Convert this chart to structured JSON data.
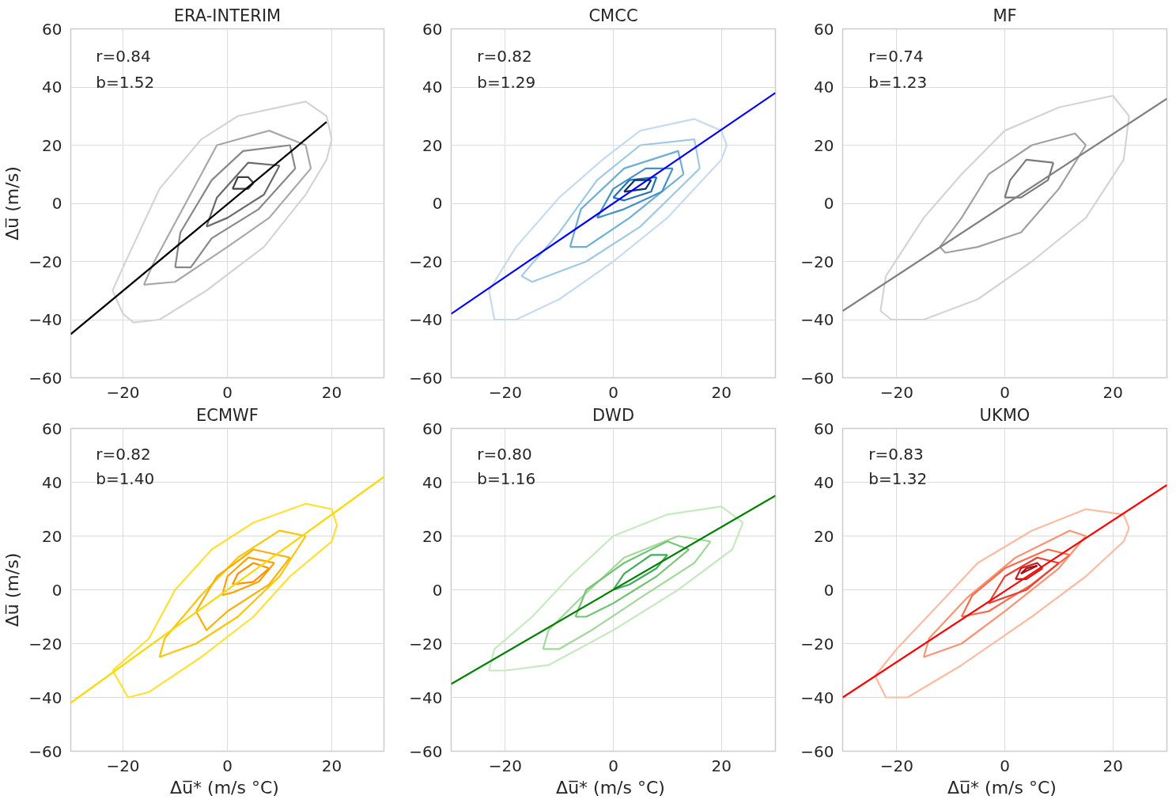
{
  "chart_data": [
    {
      "type": "line",
      "title": "ERA-INTERIM",
      "ylabel": "Δu̅ (m/s)",
      "annotations": [
        "r=0.84",
        "b=1.52"
      ],
      "xlim": [
        -30,
        30
      ],
      "ylim": [
        -60,
        60
      ],
      "xticks": [
        -20,
        0,
        20
      ],
      "yticks": [
        -60,
        -40,
        -20,
        0,
        20,
        40,
        60
      ],
      "grid": true,
      "series": [
        {
          "color": "#d4d4d4",
          "x": [
            -22,
            -20,
            -13,
            -5,
            2,
            15,
            19,
            20
          ],
          "values": [
            -30,
            -22,
            5,
            22,
            30,
            35,
            30,
            22
          ]
        },
        {
          "color": "#d4d4d4",
          "x": [
            -22,
            -20,
            -18,
            -13,
            -4,
            7,
            15,
            19,
            20
          ],
          "values": [
            -30,
            -38,
            -41,
            -40,
            -30,
            -15,
            3,
            15,
            22
          ]
        },
        {
          "color": "#a8a8a8",
          "x": [
            -16,
            -14,
            -8,
            -2,
            8,
            15,
            16
          ],
          "values": [
            -28,
            -20,
            0,
            20,
            25,
            20,
            12
          ]
        },
        {
          "color": "#a8a8a8",
          "x": [
            -16,
            -10,
            0,
            8,
            16
          ],
          "values": [
            -28,
            -27,
            -15,
            -5,
            12
          ]
        },
        {
          "color": "#888888",
          "x": [
            -10,
            -9,
            -3,
            3,
            12,
            13
          ],
          "values": [
            -22,
            -10,
            8,
            18,
            20,
            12
          ]
        },
        {
          "color": "#888888",
          "x": [
            -10,
            -7,
            -3,
            6,
            13
          ],
          "values": [
            -22,
            -22,
            -12,
            -2,
            12
          ]
        },
        {
          "color": "#6a6a6a",
          "x": [
            -4,
            -2,
            4,
            10
          ],
          "values": [
            -8,
            2,
            14,
            13
          ]
        },
        {
          "color": "#6a6a6a",
          "x": [
            -4,
            0,
            7,
            10
          ],
          "values": [
            -8,
            -5,
            3,
            13
          ]
        },
        {
          "color": "#404040",
          "x": [
            1,
            2,
            4,
            5
          ],
          "values": [
            5,
            9,
            9,
            7
          ]
        },
        {
          "color": "#404040",
          "x": [
            1,
            4,
            5
          ],
          "values": [
            5,
            5,
            7
          ]
        },
        {
          "color": "#000000",
          "x": [
            -30,
            19
          ],
          "values": [
            -45,
            28
          ]
        }
      ]
    },
    {
      "type": "line",
      "title": "CMCC",
      "annotations": [
        "r=0.82",
        "b=1.29"
      ],
      "xlim": [
        -30,
        30
      ],
      "ylim": [
        -60,
        60
      ],
      "xticks": [
        -20,
        0,
        20
      ],
      "yticks": [
        -60,
        -40,
        -20,
        0,
        20,
        40,
        60
      ],
      "grid": true,
      "series": [
        {
          "color": "#c6dbef",
          "x": [
            -23,
            -18,
            -10,
            -2,
            5,
            15,
            20,
            21
          ],
          "values": [
            -30,
            -15,
            2,
            15,
            25,
            29,
            25,
            20
          ]
        },
        {
          "color": "#c6dbef",
          "x": [
            -23,
            -22,
            -18,
            -10,
            0,
            10,
            20,
            21
          ],
          "values": [
            -30,
            -40,
            -40,
            -33,
            -20,
            -5,
            15,
            20
          ]
        },
        {
          "color": "#9ecae1",
          "x": [
            -17,
            -10,
            -3,
            5,
            15,
            16
          ],
          "values": [
            -25,
            -10,
            8,
            20,
            22,
            12
          ]
        },
        {
          "color": "#9ecae1",
          "x": [
            -17,
            -15,
            -5,
            5,
            16
          ],
          "values": [
            -25,
            -27,
            -20,
            -8,
            12
          ]
        },
        {
          "color": "#6baed6",
          "x": [
            -8,
            -6,
            2,
            12,
            13
          ],
          "values": [
            -15,
            -2,
            12,
            18,
            10
          ]
        },
        {
          "color": "#6baed6",
          "x": [
            -8,
            -5,
            3,
            13
          ],
          "values": [
            -15,
            -15,
            -5,
            10
          ]
        },
        {
          "color": "#4292c6",
          "x": [
            -3,
            0,
            6,
            11
          ],
          "values": [
            -5,
            5,
            12,
            12
          ]
        },
        {
          "color": "#4292c6",
          "x": [
            -3,
            2,
            9,
            11
          ],
          "values": [
            -5,
            -2,
            4,
            12
          ]
        },
        {
          "color": "#2171b5",
          "x": [
            0,
            3,
            8
          ],
          "values": [
            2,
            8,
            9
          ]
        },
        {
          "color": "#2171b5",
          "x": [
            0,
            2,
            7,
            8
          ],
          "values": [
            2,
            1,
            4,
            9
          ]
        },
        {
          "color": "#08306b",
          "x": [
            2,
            4,
            7
          ],
          "values": [
            4,
            8,
            8
          ]
        },
        {
          "color": "#08306b",
          "x": [
            2,
            6,
            7
          ],
          "values": [
            4,
            5,
            8
          ]
        },
        {
          "color": "#0000ff",
          "x": [
            -30,
            30
          ],
          "values": [
            -38,
            38
          ]
        }
      ]
    },
    {
      "type": "line",
      "title": "MF",
      "annotations": [
        "r=0.74",
        "b=1.23"
      ],
      "xlim": [
        -30,
        30
      ],
      "ylim": [
        -60,
        60
      ],
      "xticks": [
        -20,
        0,
        20
      ],
      "yticks": [
        -60,
        -40,
        -20,
        0,
        20,
        40,
        60
      ],
      "grid": true,
      "series": [
        {
          "color": "#d4d4d4",
          "x": [
            -23,
            -22,
            -15,
            -8,
            0,
            10,
            20,
            23
          ],
          "values": [
            -37,
            -25,
            -5,
            10,
            25,
            33,
            37,
            30
          ]
        },
        {
          "color": "#d4d4d4",
          "x": [
            -23,
            -21,
            -15,
            -5,
            5,
            15,
            22,
            23
          ],
          "values": [
            -37,
            -40,
            -40,
            -33,
            -20,
            -5,
            15,
            30
          ]
        },
        {
          "color": "#a0a0a0",
          "x": [
            -12,
            -8,
            -3,
            5,
            13,
            15
          ],
          "values": [
            -15,
            -5,
            10,
            20,
            24,
            20
          ]
        },
        {
          "color": "#a0a0a0",
          "x": [
            -12,
            -11,
            -5,
            3,
            10,
            15
          ],
          "values": [
            -15,
            -17,
            -15,
            -10,
            5,
            20
          ]
        },
        {
          "color": "#7a7a7a",
          "x": [
            0,
            1,
            4,
            9
          ],
          "values": [
            2,
            8,
            15,
            14
          ]
        },
        {
          "color": "#7a7a7a",
          "x": [
            0,
            3,
            8,
            9
          ],
          "values": [
            2,
            2,
            8,
            14
          ]
        },
        {
          "color": "#808080",
          "x": [
            -30,
            30
          ],
          "values": [
            -37,
            36
          ]
        }
      ]
    },
    {
      "type": "line",
      "title": "ECMWF",
      "ylabel": "Δu̅ (m/s)",
      "xlabel": "Δu̅* (m/s  °C)",
      "annotations": [
        "r=0.82",
        "b=1.40"
      ],
      "xlim": [
        -30,
        30
      ],
      "ylim": [
        -60,
        60
      ],
      "xticks": [
        -20,
        0,
        20
      ],
      "yticks": [
        -60,
        -40,
        -20,
        0,
        20,
        40,
        60
      ],
      "grid": true,
      "series": [
        {
          "color": "#ffe033",
          "x": [
            -22,
            -15,
            -10,
            -3,
            5,
            15,
            20,
            21
          ],
          "values": [
            -30,
            -18,
            0,
            15,
            25,
            32,
            30,
            24
          ]
        },
        {
          "color": "#ffe033",
          "x": [
            -22,
            -19,
            -15,
            -5,
            5,
            12,
            20,
            21
          ],
          "values": [
            -30,
            -40,
            -38,
            -25,
            -10,
            5,
            18,
            24
          ]
        },
        {
          "color": "#ffc400",
          "x": [
            -13,
            -12,
            -5,
            2,
            10,
            15
          ],
          "values": [
            -25,
            -18,
            -2,
            12,
            22,
            20
          ]
        },
        {
          "color": "#ffc400",
          "x": [
            -13,
            -6,
            2,
            10,
            15
          ],
          "values": [
            -25,
            -20,
            -10,
            5,
            20
          ]
        },
        {
          "color": "#ffae00",
          "x": [
            -6,
            -2,
            5,
            12
          ],
          "values": [
            -8,
            5,
            15,
            12
          ]
        },
        {
          "color": "#ffae00",
          "x": [
            -6,
            -4,
            0,
            8,
            12
          ],
          "values": [
            -8,
            -15,
            -8,
            2,
            12
          ]
        },
        {
          "color": "#ffa000",
          "x": [
            -1,
            0,
            4,
            9
          ],
          "values": [
            -2,
            5,
            12,
            10
          ]
        },
        {
          "color": "#ffa000",
          "x": [
            -1,
            1,
            6,
            9
          ],
          "values": [
            -2,
            -1,
            3,
            10
          ]
        },
        {
          "color": "#ff9000",
          "x": [
            1,
            2,
            5,
            8
          ],
          "values": [
            2,
            6,
            10,
            8
          ]
        },
        {
          "color": "#ff9000",
          "x": [
            1,
            5,
            8
          ],
          "values": [
            2,
            3,
            8
          ]
        },
        {
          "color": "#ffd700",
          "x": [
            -30,
            30
          ],
          "values": [
            -42,
            42
          ]
        }
      ]
    },
    {
      "type": "line",
      "title": "DWD",
      "xlabel": "Δu̅* (m/s  °C)",
      "annotations": [
        "r=0.80",
        "b=1.16"
      ],
      "xlim": [
        -30,
        30
      ],
      "ylim": [
        -60,
        60
      ],
      "xticks": [
        -20,
        0,
        20
      ],
      "yticks": [
        -60,
        -40,
        -20,
        0,
        20,
        40,
        60
      ],
      "grid": true,
      "series": [
        {
          "color": "#c7e9c0",
          "x": [
            -23,
            -22,
            -15,
            -8,
            0,
            10,
            20,
            24
          ],
          "values": [
            -30,
            -22,
            -10,
            5,
            20,
            28,
            31,
            25
          ]
        },
        {
          "color": "#c7e9c0",
          "x": [
            -23,
            -20,
            -12,
            0,
            12,
            22,
            24
          ],
          "values": [
            -30,
            -30,
            -28,
            -15,
            0,
            15,
            25
          ]
        },
        {
          "color": "#a1d99b",
          "x": [
            -13,
            -12,
            -6,
            2,
            12,
            18
          ],
          "values": [
            -22,
            -15,
            -3,
            12,
            20,
            18
          ]
        },
        {
          "color": "#a1d99b",
          "x": [
            -13,
            -10,
            -4,
            5,
            15,
            18
          ],
          "values": [
            -22,
            -22,
            -15,
            -3,
            10,
            18
          ]
        },
        {
          "color": "#74c476",
          "x": [
            -7,
            -5,
            2,
            10,
            14
          ],
          "values": [
            -10,
            0,
            10,
            18,
            15
          ]
        },
        {
          "color": "#74c476",
          "x": [
            -7,
            -5,
            0,
            8,
            14
          ],
          "values": [
            -10,
            -10,
            -5,
            5,
            15
          ]
        },
        {
          "color": "#41ab5d",
          "x": [
            0,
            2,
            7,
            10
          ],
          "values": [
            0,
            6,
            13,
            13
          ]
        },
        {
          "color": "#41ab5d",
          "x": [
            0,
            3,
            8,
            10
          ],
          "values": [
            0,
            2,
            8,
            13
          ]
        },
        {
          "color": "#008000",
          "x": [
            -30,
            30
          ],
          "values": [
            -35,
            35
          ]
        }
      ]
    },
    {
      "type": "line",
      "title": "UKMO",
      "xlabel": "Δu̅* (m/s  °C)",
      "annotations": [
        "r=0.83",
        "b=1.32"
      ],
      "xlim": [
        -30,
        30
      ],
      "ylim": [
        -60,
        60
      ],
      "xticks": [
        -20,
        0,
        20
      ],
      "yticks": [
        -60,
        -40,
        -20,
        0,
        20,
        40,
        60
      ],
      "grid": true,
      "series": [
        {
          "color": "#fcbba1",
          "x": [
            -24,
            -20,
            -12,
            -5,
            5,
            15,
            22,
            23
          ],
          "values": [
            -32,
            -22,
            -5,
            10,
            22,
            30,
            28,
            23
          ]
        },
        {
          "color": "#fcbba1",
          "x": [
            -24,
            -22,
            -18,
            -8,
            5,
            15,
            22,
            23
          ],
          "values": [
            -32,
            -40,
            -40,
            -28,
            -10,
            5,
            18,
            23
          ]
        },
        {
          "color": "#fc9272",
          "x": [
            -15,
            -14,
            -7,
            2,
            12,
            15
          ],
          "values": [
            -25,
            -18,
            -3,
            12,
            22,
            20
          ]
        },
        {
          "color": "#fc9272",
          "x": [
            -15,
            -8,
            0,
            10,
            15
          ],
          "values": [
            -25,
            -20,
            -8,
            8,
            20
          ]
        },
        {
          "color": "#fb6a4a",
          "x": [
            -8,
            -6,
            0,
            8,
            12
          ],
          "values": [
            -10,
            -2,
            8,
            15,
            13
          ]
        },
        {
          "color": "#fb6a4a",
          "x": [
            -8,
            -3,
            5,
            12
          ],
          "values": [
            -10,
            -8,
            2,
            13
          ]
        },
        {
          "color": "#ef3b2c",
          "x": [
            -3,
            0,
            6,
            10
          ],
          "values": [
            -5,
            5,
            12,
            10
          ]
        },
        {
          "color": "#ef3b2c",
          "x": [
            -3,
            4,
            10
          ],
          "values": [
            -5,
            0,
            10
          ]
        },
        {
          "color": "#cb181d",
          "x": [
            2,
            3,
            6,
            7
          ],
          "values": [
            4,
            8,
            10,
            8
          ]
        },
        {
          "color": "#cb181d",
          "x": [
            2,
            4,
            7
          ],
          "values": [
            4,
            4,
            8
          ]
        },
        {
          "color": "#a50f15",
          "x": [
            3,
            4,
            6
          ],
          "values": [
            6,
            8,
            9
          ]
        },
        {
          "color": "#a50f15",
          "x": [
            3,
            6
          ],
          "values": [
            6,
            9
          ]
        },
        {
          "color": "#ff0000",
          "x": [
            -30,
            30
          ],
          "values": [
            -40,
            39
          ]
        }
      ]
    }
  ]
}
